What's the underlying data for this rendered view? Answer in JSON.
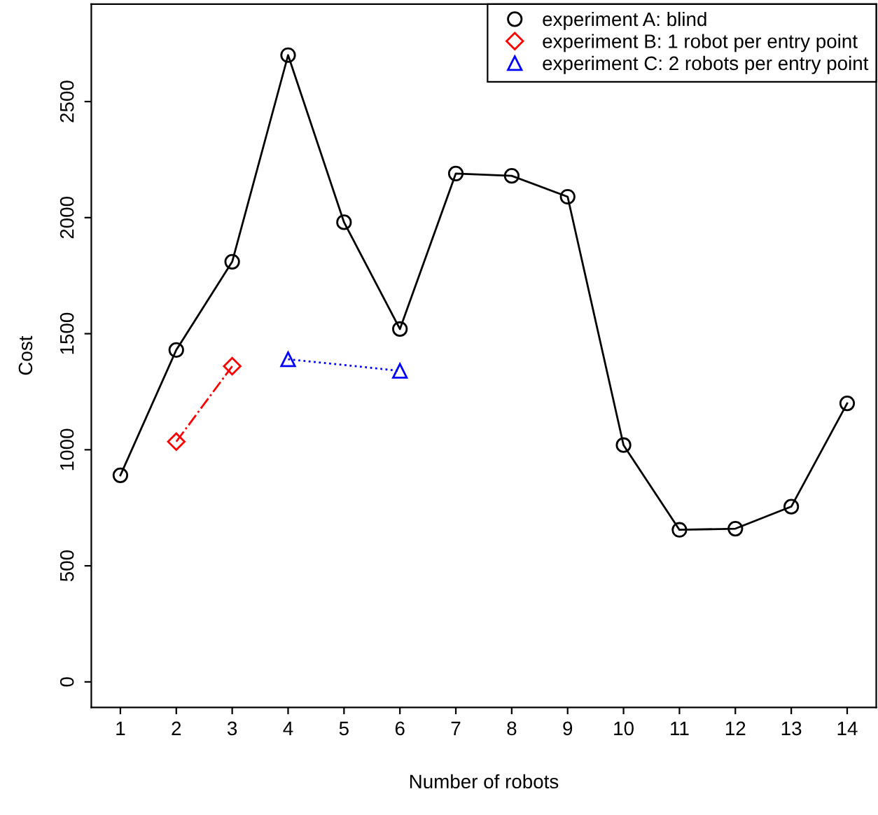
{
  "chart_data": {
    "type": "line",
    "xlabel": "Number of robots",
    "ylabel": "Cost",
    "xlim": [
      0.48,
      14.52
    ],
    "xticks": [
      1,
      2,
      3,
      4,
      5,
      6,
      7,
      8,
      9,
      10,
      11,
      12,
      13,
      14
    ],
    "ylim": [
      -110,
      2920
    ],
    "yticks": [
      0,
      500,
      1000,
      1500,
      2000,
      2500
    ],
    "grid": false,
    "legend": "top right",
    "series": [
      {
        "name": "experiment A: blind",
        "color": "#000000",
        "marker": "circle",
        "line_style": "solid",
        "x": [
          1,
          2,
          3,
          4,
          5,
          6,
          7,
          8,
          9,
          10,
          11,
          12,
          13,
          14
        ],
        "values": [
          890,
          1430,
          1810,
          2700,
          1980,
          1520,
          2190,
          2180,
          2090,
          1020,
          655,
          660,
          755,
          1200
        ]
      },
      {
        "name": "experiment B: 1 robot per entry point",
        "color": "#ff0000",
        "marker": "diamond",
        "line_style": "dashdot",
        "x": [
          2,
          3
        ],
        "values": [
          1035,
          1360
        ]
      },
      {
        "name": "experiment C: 2 robots per entry point",
        "color": "#0000ff",
        "marker": "triangle",
        "line_style": "dotted",
        "x": [
          4,
          6
        ],
        "values": [
          1390,
          1340
        ]
      }
    ]
  }
}
